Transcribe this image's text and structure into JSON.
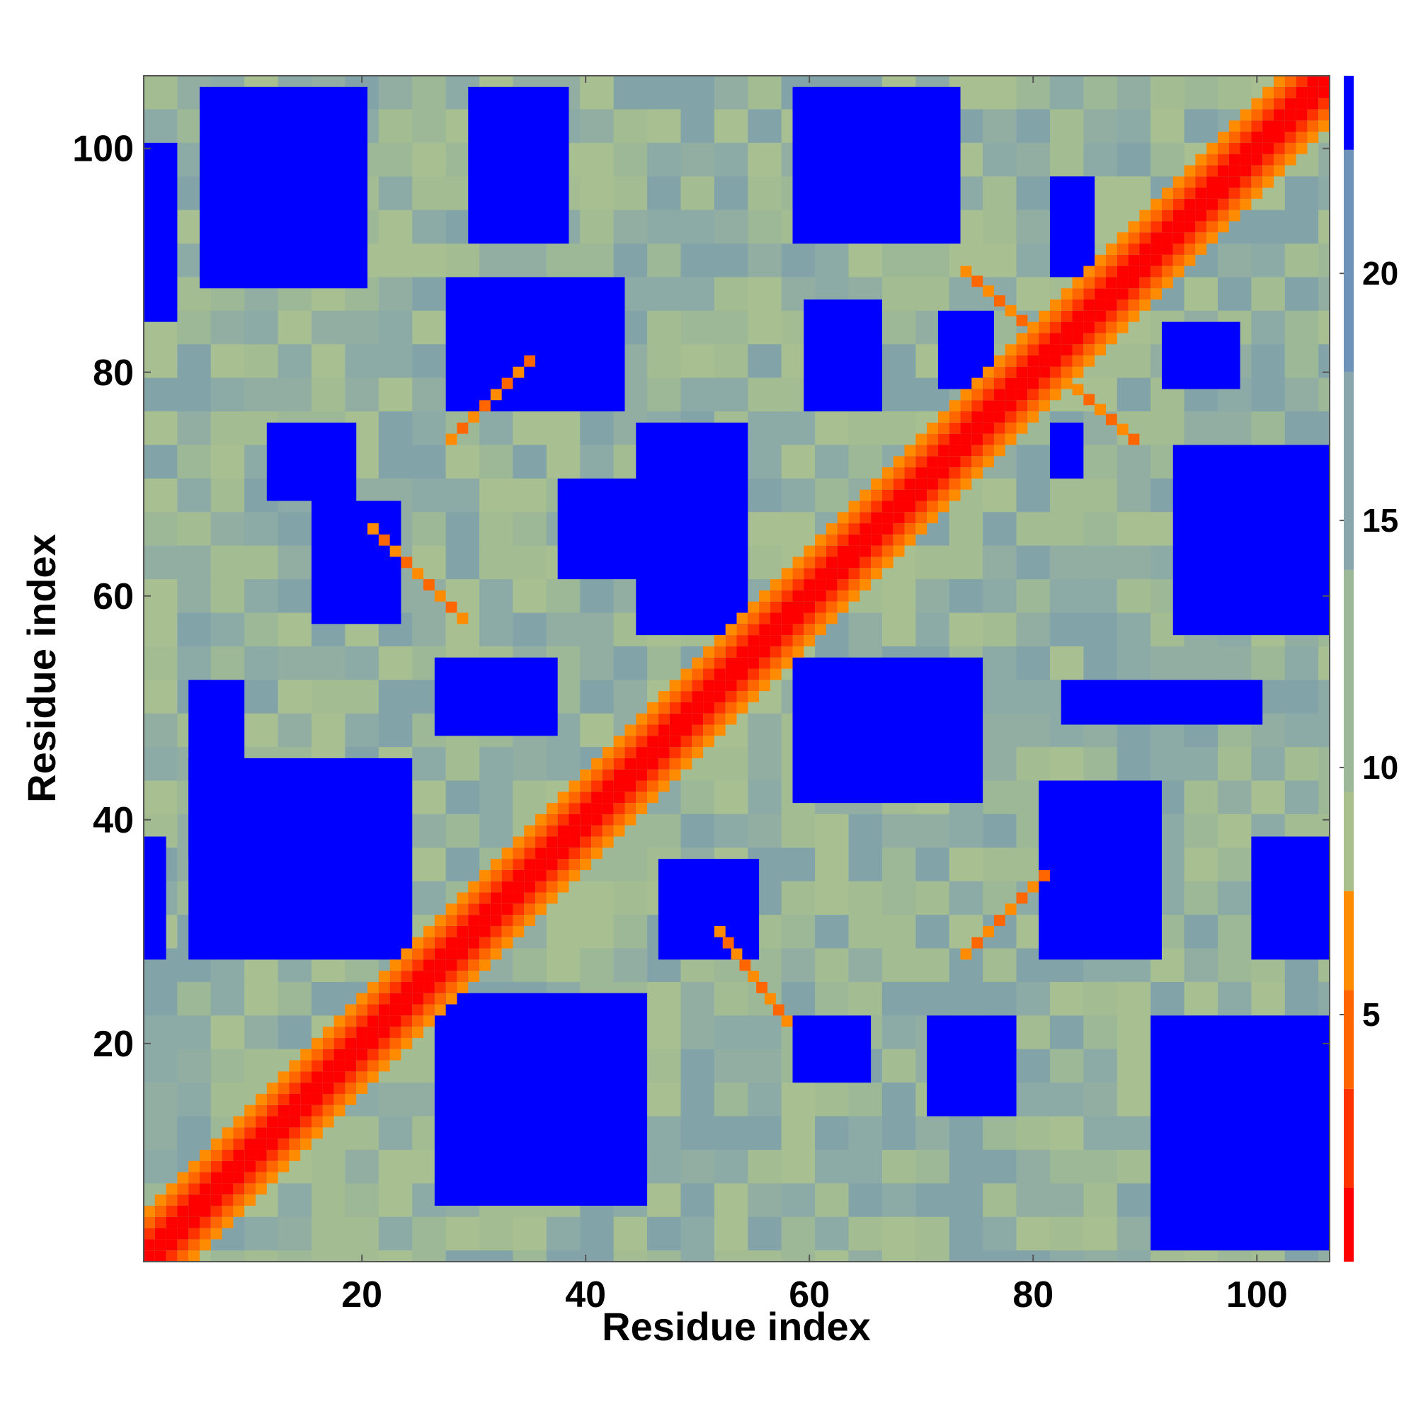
{
  "chart_data": {
    "type": "heatmap",
    "title": "",
    "xlabel": "Residue index",
    "ylabel": "Residue index",
    "n_residues": 106,
    "xlim": [
      1,
      106
    ],
    "ylim": [
      1,
      106
    ],
    "x_ticks": [
      {
        "value": 20,
        "label": "20"
      },
      {
        "value": 40,
        "label": "40"
      },
      {
        "value": 60,
        "label": "60"
      },
      {
        "value": 80,
        "label": "80"
      },
      {
        "value": 100,
        "label": "100"
      }
    ],
    "y_ticks": [
      {
        "value": 20,
        "label": "20"
      },
      {
        "value": 40,
        "label": "40"
      },
      {
        "value": 60,
        "label": "60"
      },
      {
        "value": 80,
        "label": "80"
      },
      {
        "value": 100,
        "label": "100"
      }
    ],
    "colorbar": {
      "range": [
        0,
        24
      ],
      "ticks": [
        {
          "value": 5,
          "label": "5"
        },
        {
          "value": 10,
          "label": "10"
        },
        {
          "value": 15,
          "label": "15"
        },
        {
          "value": 20,
          "label": "20"
        }
      ],
      "bins": [
        {
          "from": 0,
          "to": 1.5,
          "color": "#ff0000"
        },
        {
          "from": 1.5,
          "to": 3.5,
          "color": "#ff3300"
        },
        {
          "from": 3.5,
          "to": 5.5,
          "color": "#ff6600"
        },
        {
          "from": 5.5,
          "to": 7.5,
          "color": "#ff8c00"
        },
        {
          "from": 7.5,
          "to": 9.5,
          "color": "#a9c08c"
        },
        {
          "from": 9.5,
          "to": 14,
          "color": "#9cb898"
        },
        {
          "from": 14,
          "to": 18,
          "color": "#8aa6ad"
        },
        {
          "from": 18,
          "to": 22.5,
          "color": "#6e93b8"
        },
        {
          "from": 22.5,
          "to": 24,
          "color": "#0000ff"
        }
      ]
    },
    "contact_bands": [
      {
        "type": "diagonal",
        "start": 1,
        "end": 106,
        "note": "main diagonal, near-zero distance"
      },
      {
        "type": "antiparallel",
        "i_range": [
          21,
          29
        ],
        "j_range": [
          58,
          66
        ]
      },
      {
        "type": "antiparallel",
        "i_range": [
          52,
          58
        ],
        "j_range": [
          22,
          30
        ]
      },
      {
        "type": "antiparallel",
        "i_range": [
          74,
          82
        ],
        "j_range": [
          82,
          89
        ]
      },
      {
        "type": "antiparallel",
        "i_range": [
          80,
          89
        ],
        "j_range": [
          74,
          82
        ]
      },
      {
        "type": "parallel",
        "i_range": [
          74,
          81
        ],
        "j_range": [
          28,
          35
        ]
      },
      {
        "type": "parallel",
        "i_range": [
          28,
          35
        ],
        "j_range": [
          74,
          81
        ]
      }
    ],
    "far_clusters": [
      {
        "x_range": [
          6,
          20
        ],
        "y_range": [
          88,
          105
        ]
      },
      {
        "x_range": [
          30,
          38
        ],
        "y_range": [
          92,
          105
        ]
      },
      {
        "x_range": [
          59,
          73
        ],
        "y_range": [
          92,
          105
        ]
      },
      {
        "x_range": [
          28,
          43
        ],
        "y_range": [
          77,
          88
        ]
      },
      {
        "x_range": [
          60,
          66
        ],
        "y_range": [
          77,
          86
        ]
      },
      {
        "x_range": [
          72,
          76
        ],
        "y_range": [
          79,
          85
        ]
      },
      {
        "x_range": [
          92,
          98
        ],
        "y_range": [
          79,
          84
        ]
      },
      {
        "x_range": [
          82,
          85
        ],
        "y_range": [
          89,
          97
        ]
      },
      {
        "x_range": [
          5,
          9
        ],
        "y_range": [
          37,
          52
        ]
      },
      {
        "x_range": [
          5,
          24
        ],
        "y_range": [
          28,
          45
        ]
      },
      {
        "x_range": [
          16,
          23
        ],
        "y_range": [
          58,
          68
        ]
      },
      {
        "x_range": [
          12,
          19
        ],
        "y_range": [
          69,
          75
        ]
      },
      {
        "x_range": [
          45,
          54
        ],
        "y_range": [
          57,
          75
        ]
      },
      {
        "x_range": [
          38,
          48
        ],
        "y_range": [
          62,
          70
        ]
      },
      {
        "x_range": [
          27,
          37
        ],
        "y_range": [
          48,
          54
        ]
      },
      {
        "x_range": [
          47,
          55
        ],
        "y_range": [
          28,
          36
        ]
      },
      {
        "x_range": [
          27,
          45
        ],
        "y_range": [
          6,
          24
        ]
      },
      {
        "x_range": [
          59,
          75
        ],
        "y_range": [
          42,
          54
        ]
      },
      {
        "x_range": [
          59,
          65
        ],
        "y_range": [
          17,
          22
        ]
      },
      {
        "x_range": [
          71,
          78
        ],
        "y_range": [
          14,
          22
        ]
      },
      {
        "x_range": [
          81,
          91
        ],
        "y_range": [
          28,
          43
        ]
      },
      {
        "x_range": [
          91,
          106
        ],
        "y_range": [
          2,
          22
        ]
      },
      {
        "x_range": [
          93,
          106
        ],
        "y_range": [
          57,
          73
        ]
      },
      {
        "x_range": [
          82,
          84
        ],
        "y_range": [
          71,
          75
        ]
      },
      {
        "x_range": [
          100,
          106
        ],
        "y_range": [
          28,
          38
        ]
      },
      {
        "x_range": [
          83,
          100
        ],
        "y_range": [
          49,
          52
        ]
      },
      {
        "x_range": [
          1,
          2
        ],
        "y_range": [
          28,
          38
        ]
      },
      {
        "x_range": [
          1,
          3
        ],
        "y_range": [
          85,
          100
        ]
      }
    ]
  }
}
